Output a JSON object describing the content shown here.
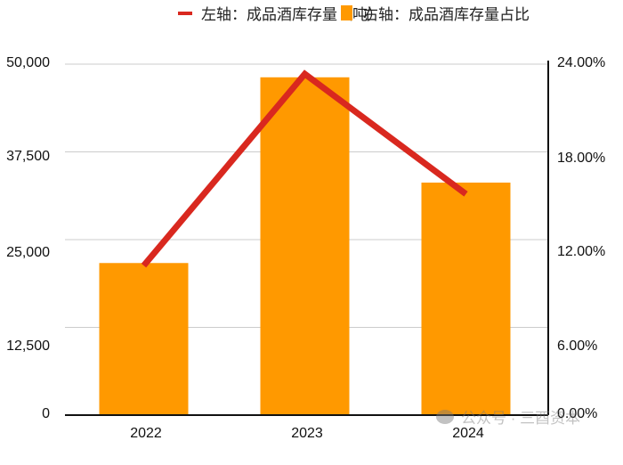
{
  "legend": {
    "line_label": "左轴：成品酒库存量（吨）",
    "bar_label": "右轴：成品酒库存量占比"
  },
  "axes": {
    "left_ticks": [
      "50,000",
      "37,500",
      "25,000",
      "12,500",
      "0"
    ],
    "right_ticks": [
      "24.00%",
      "18.00%",
      "12.00%",
      "6.00%",
      "0.00%"
    ],
    "x_ticks": [
      "2022",
      "2023",
      "2024"
    ]
  },
  "watermark": "公众号 · 三酉资本",
  "colors": {
    "line": "#d9281f",
    "bar": "#ff9900",
    "grid": "#cccccc",
    "axis": "#111111"
  },
  "chart_data": {
    "type": "bar+line",
    "title": "",
    "categories": [
      "2022",
      "2023",
      "2024"
    ],
    "series": [
      {
        "name": "左轴：成品酒库存量（吨）",
        "type": "line",
        "axis": "left",
        "values": [
          21300,
          48600,
          31500
        ]
      },
      {
        "name": "右轴：成品酒库存量占比",
        "type": "bar",
        "axis": "right",
        "values": [
          10.4,
          23.1,
          15.9
        ]
      }
    ],
    "left_axis": {
      "label": "",
      "range": [
        0,
        50000
      ],
      "ticks": [
        0,
        12500,
        25000,
        37500,
        50000
      ]
    },
    "right_axis": {
      "label": "",
      "range": [
        0,
        24
      ],
      "unit": "%",
      "ticks": [
        0,
        6,
        12,
        18,
        24
      ]
    },
    "grid": true,
    "legend_position": "top"
  }
}
